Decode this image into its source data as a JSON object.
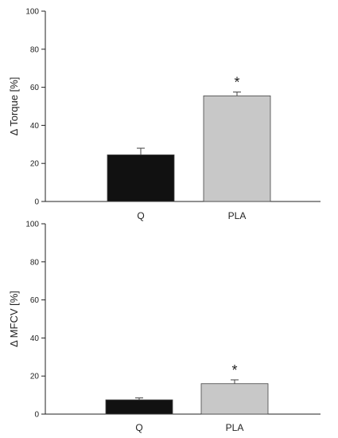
{
  "chart_data": [
    {
      "type": "bar",
      "ylabel": "Δ Torque [%]",
      "ylim": [
        0,
        100
      ],
      "yticks": [
        0,
        20,
        40,
        60,
        80,
        100
      ],
      "categories": [
        "Q",
        "PLA"
      ],
      "values": [
        24.5,
        55.5
      ],
      "errors": [
        3.5,
        2
      ],
      "colors": [
        "#111111",
        "#c8c8c8"
      ],
      "annotations": [
        "",
        "*"
      ],
      "show_category_labels": true
    },
    {
      "type": "bar",
      "ylabel": "Δ MFCV [%]",
      "ylim": [
        0,
        100
      ],
      "yticks": [
        0,
        20,
        40,
        60,
        80,
        100
      ],
      "categories": [
        "Q",
        "PLA"
      ],
      "values": [
        7.5,
        16
      ],
      "errors": [
        1,
        2
      ],
      "colors": [
        "#111111",
        "#c8c8c8"
      ],
      "annotations": [
        "",
        "*"
      ],
      "show_category_labels": true
    }
  ]
}
